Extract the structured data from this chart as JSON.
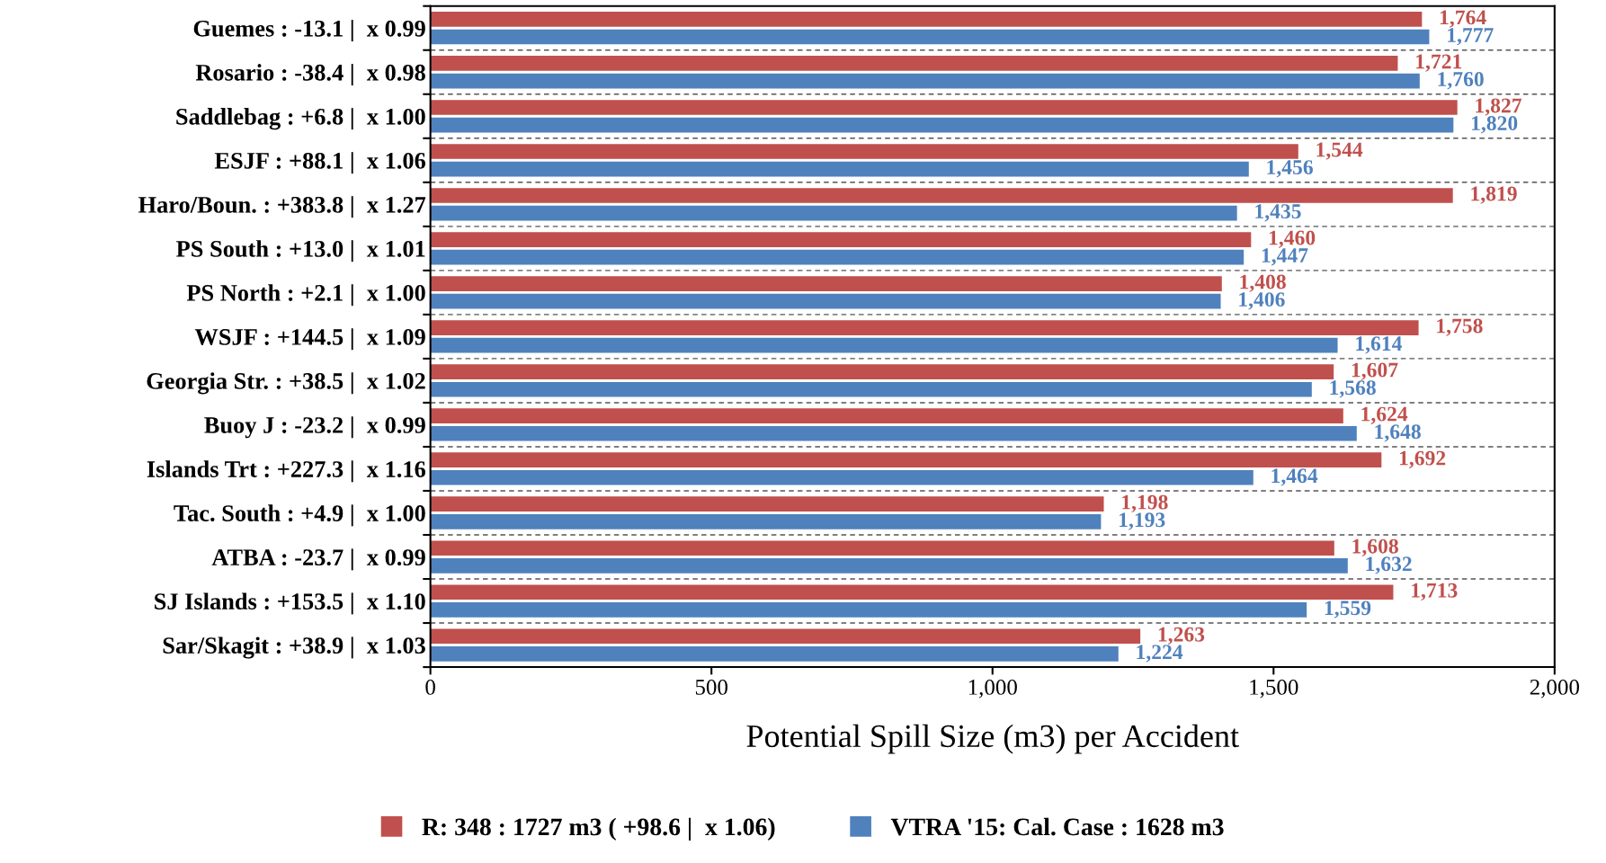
{
  "chart_data": {
    "type": "bar",
    "orientation": "horizontal",
    "categories": [
      "Guemes : -13.1 |  x 0.99",
      "Rosario : -38.4 |  x 0.98",
      "Saddlebag : +6.8 |  x 1.00",
      "ESJF : +88.1 |  x 1.06",
      "Haro/Boun. : +383.8 |  x 1.27",
      "PS South : +13.0 |  x 1.01",
      "PS North : +2.1 |  x 1.00",
      "WSJF : +144.5 |  x 1.09",
      "Georgia Str. : +38.5 |  x 1.02",
      "Buoy J : -23.2 |  x 0.99",
      "Islands Trt : +227.3 |  x 1.16",
      "Tac. South : +4.9 |  x 1.00",
      "ATBA : -23.7 |  x 0.99",
      "SJ Islands : +153.5 |  x 1.10",
      "Sar/Skagit : +38.9 |  x 1.03"
    ],
    "series": [
      {
        "name": "R: 348 : 1727 m3 ( +98.6 |  x 1.06)",
        "color": "#c0504d",
        "values": [
          1764,
          1721,
          1827,
          1544,
          1819,
          1460,
          1408,
          1758,
          1607,
          1624,
          1692,
          1198,
          1608,
          1713,
          1263
        ],
        "value_labels": [
          "1,764",
          "1,721",
          "1,827",
          "1,544",
          "1,819",
          "1,460",
          "1,408",
          "1,758",
          "1,607",
          "1,624",
          "1,692",
          "1,198",
          "1,608",
          "1,713",
          "1,263"
        ]
      },
      {
        "name": "VTRA '15: Cal. Case : 1628 m3",
        "color": "#4f81bd",
        "values": [
          1777,
          1760,
          1820,
          1456,
          1435,
          1447,
          1406,
          1614,
          1568,
          1648,
          1464,
          1193,
          1632,
          1559,
          1224
        ],
        "value_labels": [
          "1,777",
          "1,760",
          "1,820",
          "1,456",
          "1,435",
          "1,447",
          "1,406",
          "1,614",
          "1,568",
          "1,648",
          "1,464",
          "1,193",
          "1,632",
          "1,559",
          "1,224"
        ]
      }
    ],
    "xlabel": "Potential Spill Size (m3) per Accident",
    "xlim": [
      0,
      2000
    ],
    "xticks": [
      0,
      500,
      {
        "value": 1000,
        "label": "1,000"
      },
      {
        "value": 1500,
        "label": "1,500"
      },
      {
        "value": 2000,
        "label": "2,000"
      }
    ],
    "grid": "y",
    "legend": "bottom"
  }
}
